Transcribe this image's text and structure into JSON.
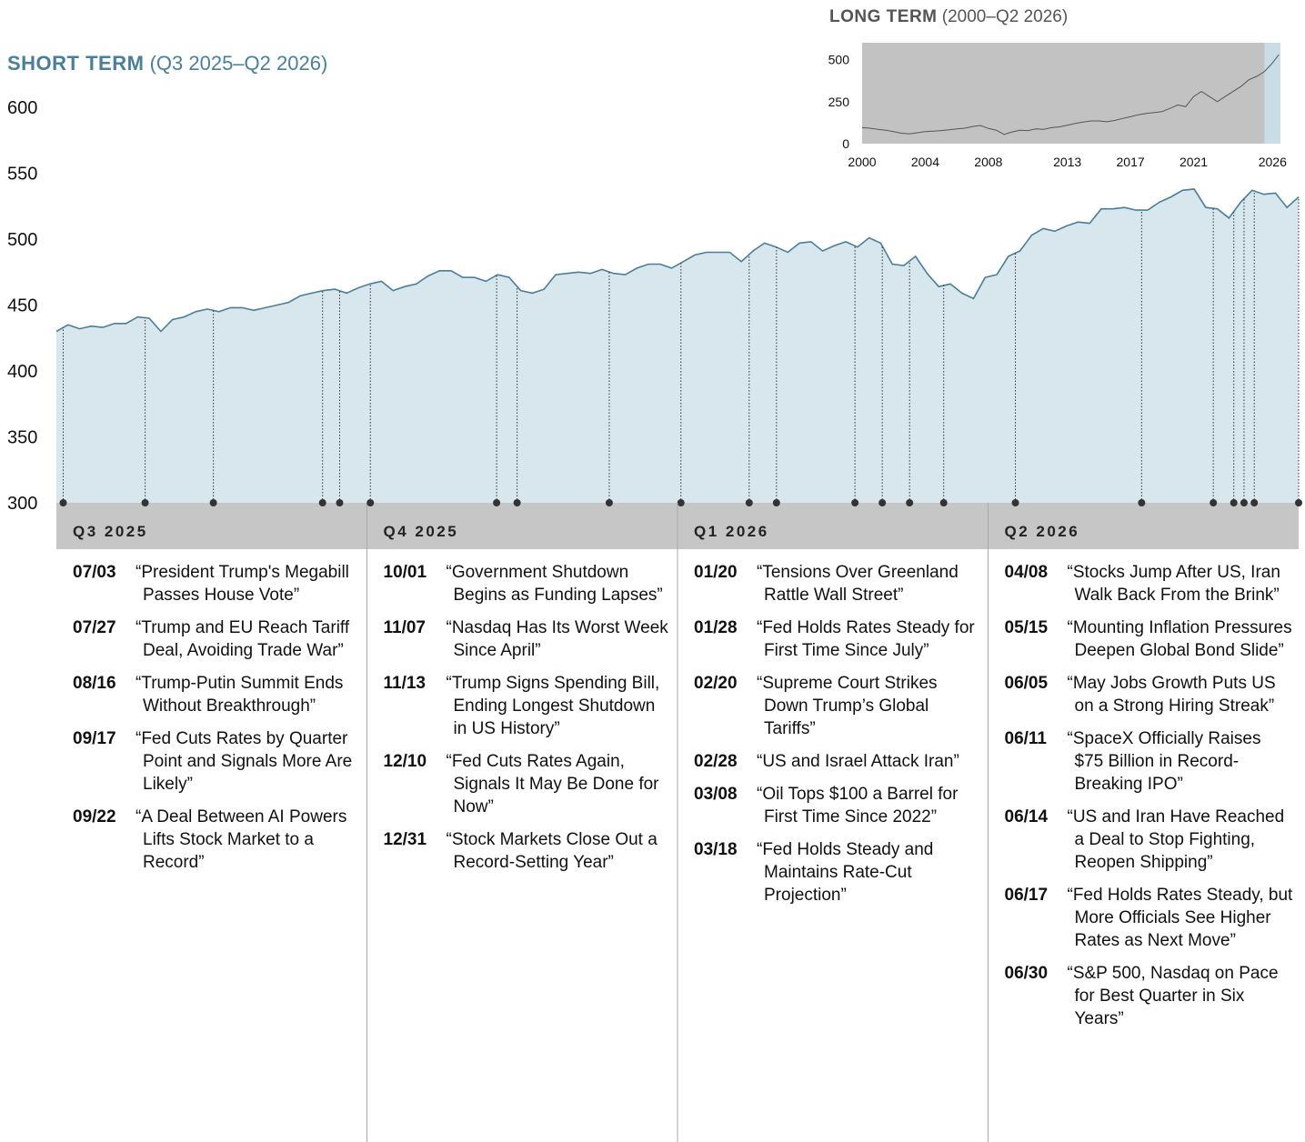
{
  "chart_data": [
    {
      "type": "area",
      "title": "SHORT TERM",
      "subtitle": "(Q3 2025–Q2 2026)",
      "color": "#4a7f99",
      "fill": "#d8e6ed",
      "ylim": [
        300,
        600
      ],
      "yticks": [
        300,
        350,
        400,
        450,
        500,
        550,
        600
      ],
      "values": [
        430,
        435,
        432,
        434,
        433,
        436,
        436,
        441,
        440,
        430,
        439,
        441,
        445,
        447,
        445,
        448,
        448,
        446,
        448,
        450,
        452,
        457,
        459,
        461,
        462,
        459,
        463,
        466,
        468,
        461,
        464,
        466,
        472,
        476,
        476,
        471,
        471,
        468,
        473,
        471,
        461,
        459,
        462,
        473,
        474,
        475,
        474,
        477,
        474,
        473,
        478,
        481,
        481,
        478,
        483,
        488,
        490,
        490,
        490,
        483,
        491,
        497,
        494,
        490,
        497,
        498,
        491,
        495,
        498,
        494,
        501,
        497,
        481,
        480,
        487,
        474,
        464,
        466,
        459,
        455,
        471,
        473,
        487,
        491,
        503,
        508,
        506,
        510,
        513,
        512,
        523,
        523,
        524,
        522,
        522,
        528,
        532,
        537,
        538,
        524,
        523,
        516,
        528,
        537,
        534,
        535,
        524,
        532
      ],
      "quarters": [
        {
          "label": "Q3 2025",
          "events": [
            {
              "date": "07/03",
              "headline": "“President Trump's Megabill Passes House Vote”"
            },
            {
              "date": "07/27",
              "headline": "“Trump and EU Reach Tariff Deal, Avoiding Trade War”"
            },
            {
              "date": "08/16",
              "headline": "“Trump-Putin Summit Ends Without Breakthrough”"
            },
            {
              "date": "09/17",
              "headline": "“Fed Cuts Rates by Quarter Point and Signals More Are Likely”"
            },
            {
              "date": "09/22",
              "headline": "“A Deal Between AI Powers Lifts Stock Market to a Record”"
            }
          ]
        },
        {
          "label": "Q4 2025",
          "events": [
            {
              "date": "10/01",
              "headline": "“Government Shutdown Begins as Funding Lapses”"
            },
            {
              "date": "11/07",
              "headline": "“Nasdaq Has Its Worst Week Since April”"
            },
            {
              "date": "11/13",
              "headline": "“Trump Signs Spending Bill, Ending Longest Shutdown in US History”"
            },
            {
              "date": "12/10",
              "headline": "“Fed Cuts Rates Again, Signals It May Be Done for Now”"
            },
            {
              "date": "12/31",
              "headline": "“Stock Markets Close Out a Record-Setting Year”"
            }
          ]
        },
        {
          "label": "Q1 2026",
          "events": [
            {
              "date": "01/20",
              "headline": "“Tensions Over Greenland Rattle Wall Street”"
            },
            {
              "date": "01/28",
              "headline": "“Fed Holds Rates Steady for First Time Since July”"
            },
            {
              "date": "02/20",
              "headline": "“Supreme Court Strikes Down Trump’s Global Tariffs”"
            },
            {
              "date": "02/28",
              "headline": "“US and Israel Attack Iran”"
            },
            {
              "date": "03/08",
              "headline": "“Oil Tops $100 a Barrel for First Time Since 2022”"
            },
            {
              "date": "03/18",
              "headline": "“Fed Holds Steady and Maintains Rate-Cut Projection”"
            }
          ]
        },
        {
          "label": "Q2 2026",
          "events": [
            {
              "date": "04/08",
              "headline": "“Stocks Jump After US, Iran Walk Back From the Brink”"
            },
            {
              "date": "05/15",
              "headline": "“Mounting Inflation Pressures Deepen Global Bond Slide”"
            },
            {
              "date": "06/05",
              "headline": "“May Jobs Growth Puts US on a Strong Hiring Streak”"
            },
            {
              "date": "06/11",
              "headline": "“SpaceX Officially Raises $75 Billion in Record-Breaking IPO”"
            },
            {
              "date": "06/14",
              "headline": "“US and Iran Have Reached a Deal to Stop Fighting, Reopen Shipping”"
            },
            {
              "date": "06/17",
              "headline": "“Fed Holds Rates Steady, but More Officials See Higher Rates as Next Move”"
            },
            {
              "date": "06/30",
              "headline": "“S&P 500, Nasdaq on Pace for Best Quarter in Six Years”"
            }
          ]
        }
      ]
    },
    {
      "type": "line",
      "title": "LONG TERM",
      "subtitle": "(2000–Q2 2026)",
      "color": "#555555",
      "xlim": [
        2000,
        2026.5
      ],
      "xticks": [
        2000,
        2004,
        2008,
        2013,
        2017,
        2021,
        2026
      ],
      "ylim": [
        0,
        600
      ],
      "yticks": [
        0,
        250,
        500
      ],
      "x": [
        2000,
        2000.5,
        2001,
        2001.5,
        2002,
        2002.5,
        2003,
        2003.5,
        2004,
        2004.5,
        2005,
        2005.5,
        2006,
        2006.5,
        2007,
        2007.5,
        2008,
        2008.5,
        2009,
        2009.5,
        2010,
        2010.5,
        2011,
        2011.5,
        2012,
        2012.5,
        2013,
        2013.5,
        2014,
        2014.5,
        2015,
        2015.5,
        2016,
        2016.5,
        2017,
        2017.5,
        2018,
        2018.5,
        2019,
        2019.5,
        2020,
        2020.5,
        2021,
        2021.5,
        2022,
        2022.5,
        2023,
        2023.5,
        2024,
        2024.5,
        2025,
        2025.5,
        2026,
        2026.4
      ],
      "values": [
        95,
        92,
        85,
        80,
        72,
        62,
        58,
        65,
        72,
        74,
        78,
        82,
        88,
        92,
        102,
        108,
        90,
        80,
        55,
        70,
        80,
        78,
        88,
        85,
        95,
        100,
        110,
        120,
        128,
        135,
        135,
        130,
        138,
        150,
        160,
        172,
        180,
        185,
        190,
        210,
        230,
        220,
        280,
        310,
        280,
        250,
        280,
        310,
        340,
        380,
        400,
        430,
        480,
        530
      ]
    }
  ]
}
